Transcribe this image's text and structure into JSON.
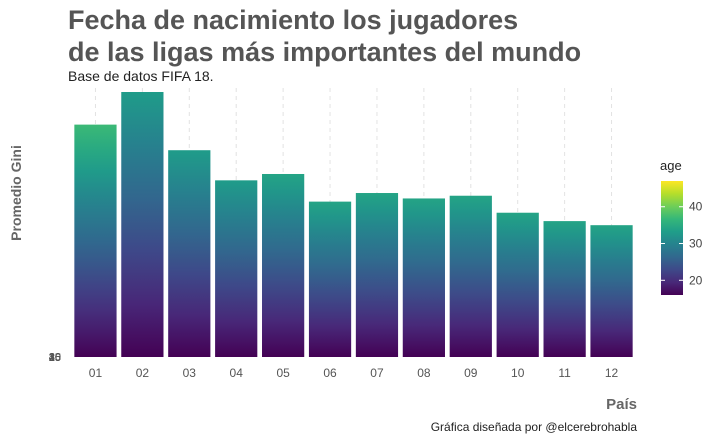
{
  "title_line1": "Fecha de nacimiento los jugadores",
  "title_line2": "de las ligas más importantes del mundo",
  "subtitle": "Base de datos FIFA 18.",
  "ylabel": "Promedio Gini",
  "xlabel": "País",
  "caption": "Gráfica diseñada por @elcerebrohabla",
  "legend_title": "age",
  "colors": {
    "background": "#ffffff",
    "grid": "#e2e2e2",
    "viridis": [
      "#440154",
      "#482878",
      "#3e4989",
      "#31688e",
      "#26828e",
      "#1f9e89",
      "#35b779",
      "#6ece58",
      "#b5de2b",
      "#fde725"
    ]
  },
  "chart_data": {
    "type": "bar",
    "fill": "age",
    "categories": [
      "01",
      "02",
      "03",
      "04",
      "05",
      "06",
      "07",
      "08",
      "09",
      "10",
      "11",
      "12"
    ],
    "values": [
      1026,
      1170,
      913,
      780,
      808,
      686,
      724,
      700,
      712,
      637,
      600,
      582
    ],
    "top_age": [
      37,
      33,
      33,
      33,
      34,
      34,
      34,
      34,
      34,
      34,
      34,
      34
    ],
    "y_tick_labels": [
      "15",
      "20",
      "25",
      "30",
      "35",
      "40"
    ],
    "ylim": [
      0,
      1170
    ],
    "legend": {
      "variable": "age",
      "range": [
        16,
        47
      ],
      "ticks": [
        20,
        30,
        40
      ]
    }
  }
}
